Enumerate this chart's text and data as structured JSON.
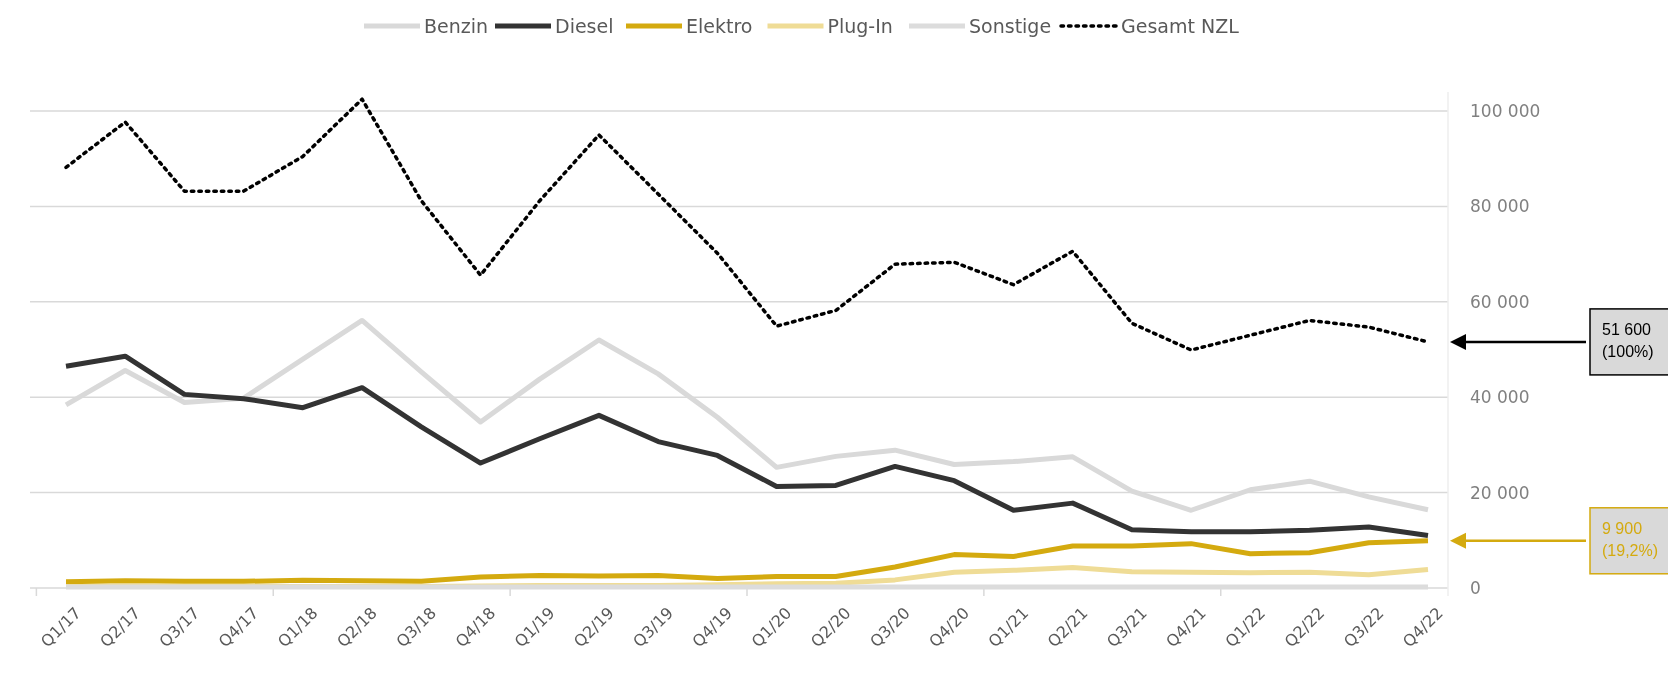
{
  "chart_data": {
    "type": "line",
    "categories": [
      "Q1/17",
      "Q2/17",
      "Q3/17",
      "Q4/17",
      "Q1/18",
      "Q2/18",
      "Q3/18",
      "Q4/18",
      "Q1/19",
      "Q2/19",
      "Q3/19",
      "Q4/19",
      "Q1/20",
      "Q2/20",
      "Q3/20",
      "Q4/20",
      "Q1/21",
      "Q2/21",
      "Q3/21",
      "Q4/21",
      "Q1/22",
      "Q2/22",
      "Q3/22",
      "Q4/22"
    ],
    "series": [
      {
        "name": "Benzin",
        "color": "#d9d9d9",
        "values": [
          38400,
          45600,
          38900,
          39800,
          48000,
          56100,
          45300,
          34800,
          43800,
          52000,
          44900,
          35800,
          25300,
          27600,
          28900,
          25900,
          26500,
          27500,
          20300,
          16300,
          20600,
          22400,
          19100,
          16400
        ]
      },
      {
        "name": "Diesel",
        "color": "#333333",
        "values": [
          46500,
          48600,
          40600,
          39700,
          37800,
          42000,
          33800,
          26200,
          31300,
          36200,
          30700,
          27800,
          21300,
          21500,
          25500,
          22500,
          16300,
          17800,
          12200,
          11800,
          11800,
          12100,
          12800,
          11000
        ]
      },
      {
        "name": "Elektro",
        "color": "#d4aa0f",
        "values": [
          1300,
          1500,
          1400,
          1400,
          1600,
          1500,
          1400,
          2300,
          2600,
          2500,
          2600,
          2000,
          2400,
          2400,
          4400,
          7000,
          6600,
          8800,
          8800,
          9300,
          7200,
          7400,
          9500,
          9900
        ]
      },
      {
        "name": "Plug-In",
        "color": "#efdc96",
        "values": [
          300,
          300,
          300,
          300,
          300,
          300,
          300,
          400,
          500,
          500,
          500,
          700,
          900,
          1000,
          1700,
          3300,
          3700,
          4300,
          3400,
          3300,
          3200,
          3300,
          2800,
          3900
        ]
      },
      {
        "name": "Sonstige",
        "color": "#dcdcdc",
        "values": [
          200,
          200,
          200,
          200,
          200,
          200,
          200,
          200,
          200,
          200,
          200,
          200,
          200,
          200,
          200,
          200,
          200,
          200,
          200,
          200,
          200,
          200,
          200,
          200
        ]
      },
      {
        "name": "Gesamt NZL",
        "color": "#000000",
        "line_style": "dotted",
        "values": [
          88200,
          97700,
          83200,
          83200,
          90500,
          102500,
          81200,
          65600,
          81200,
          95000,
          82600,
          70200,
          54900,
          58200,
          67900,
          68300,
          63600,
          70600,
          55500,
          49900,
          53000,
          56100,
          54700,
          51600
        ]
      }
    ],
    "ylim": [
      0,
      104000
    ],
    "yticks": [
      0,
      {
        "value": 20000,
        "label": "20 000"
      },
      {
        "value": 40000,
        "label": "40 000"
      },
      {
        "value": 60000,
        "label": "60 000"
      },
      {
        "value": 80000,
        "label": "80 000"
      },
      {
        "value": 100000,
        "label": "100 000"
      }
    ],
    "grid": "y",
    "legend": "top",
    "line_style": "solid",
    "marker": "none",
    "annotations": [
      "51 600\n(100%)",
      "9 900\n(19,2%)"
    ]
  }
}
